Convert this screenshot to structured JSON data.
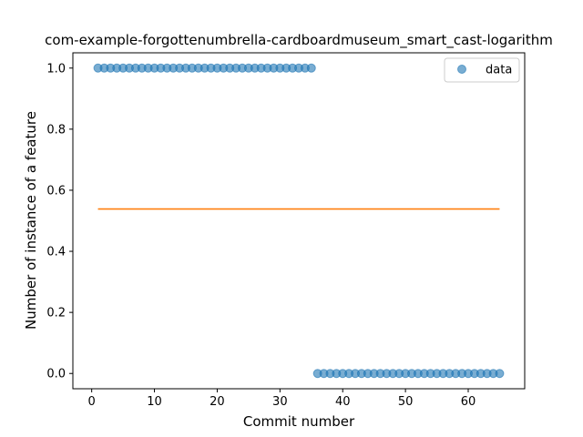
{
  "chart_data": {
    "type": "scatter",
    "title": "com-example-forgottenumbrella-cardboardmuseum_smart_cast-logarithm",
    "xlabel": "Commit number",
    "ylabel": "Number of instance of a feature",
    "xlim": [
      -3,
      69
    ],
    "ylim": [
      -0.05,
      1.05
    ],
    "xticks": [
      0,
      10,
      20,
      30,
      40,
      50,
      60
    ],
    "yticks": [
      0.0,
      0.2,
      0.4,
      0.6,
      0.8,
      1.0
    ],
    "ytick_labels": [
      "0.0",
      "0.2",
      "0.4",
      "0.6",
      "0.8",
      "1.0"
    ],
    "legend": {
      "placement": "top-right",
      "entries": [
        "data"
      ]
    },
    "grid": false,
    "series": [
      {
        "name": "data",
        "kind": "scatter",
        "color": "#1f77b4",
        "x": [
          1,
          2,
          3,
          4,
          5,
          6,
          7,
          8,
          9,
          10,
          11,
          12,
          13,
          14,
          15,
          16,
          17,
          18,
          19,
          20,
          21,
          22,
          23,
          24,
          25,
          26,
          27,
          28,
          29,
          30,
          31,
          32,
          33,
          34,
          35,
          36,
          37,
          38,
          39,
          40,
          41,
          42,
          43,
          44,
          45,
          46,
          47,
          48,
          49,
          50,
          51,
          52,
          53,
          54,
          55,
          56,
          57,
          58,
          59,
          60,
          61,
          62,
          63,
          64,
          65
        ],
        "y": [
          1,
          1,
          1,
          1,
          1,
          1,
          1,
          1,
          1,
          1,
          1,
          1,
          1,
          1,
          1,
          1,
          1,
          1,
          1,
          1,
          1,
          1,
          1,
          1,
          1,
          1,
          1,
          1,
          1,
          1,
          1,
          1,
          1,
          1,
          1,
          0,
          0,
          0,
          0,
          0,
          0,
          0,
          0,
          0,
          0,
          0,
          0,
          0,
          0,
          0,
          0,
          0,
          0,
          0,
          0,
          0,
          0,
          0,
          0,
          0,
          0,
          0,
          0,
          0,
          0
        ]
      },
      {
        "kind": "line",
        "color": "#ff7f0e",
        "x": [
          1,
          65
        ],
        "y": [
          0.5385,
          0.5385
        ]
      }
    ]
  }
}
